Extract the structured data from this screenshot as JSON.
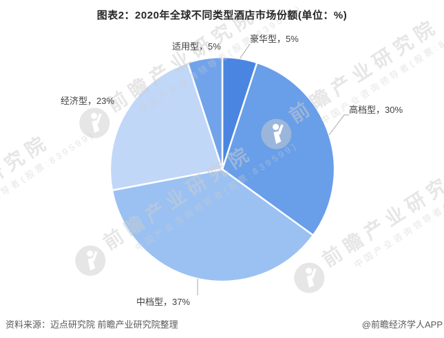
{
  "title": "图表2：2020年全球不同类型酒店市场份额(单位：%)",
  "source_note": "资料来源：迈点研究院 前瞻产业研究院整理",
  "credit": "@前瞻经济学人APP",
  "watermark": {
    "logo_icon": "qianzhan-logo-icon",
    "main_text": "前瞻产业研究院",
    "sub_text": "中国产业咨询领导者(股票:839599)"
  },
  "chart_data": {
    "type": "pie",
    "title": "图表2：2020年全球不同类型酒店市场份额(单位：%)",
    "unit": "%",
    "categories": [
      "豪华型",
      "高档型",
      "中档型",
      "经济型",
      "适用型"
    ],
    "values": [
      5,
      30,
      37,
      23,
      5
    ],
    "colors": [
      "#4a86e1",
      "#699ee9",
      "#9ac1f2",
      "#c1d7f8",
      "#71a3eb"
    ],
    "data_labels": [
      "豪华型，5%",
      "高档型，30%",
      "中档型，37%",
      "经济型，23%",
      "适用型，5%"
    ],
    "start_angle_deg": 0,
    "direction": "clockwise",
    "legend": "none",
    "label_style": "outside, category name + percent"
  }
}
